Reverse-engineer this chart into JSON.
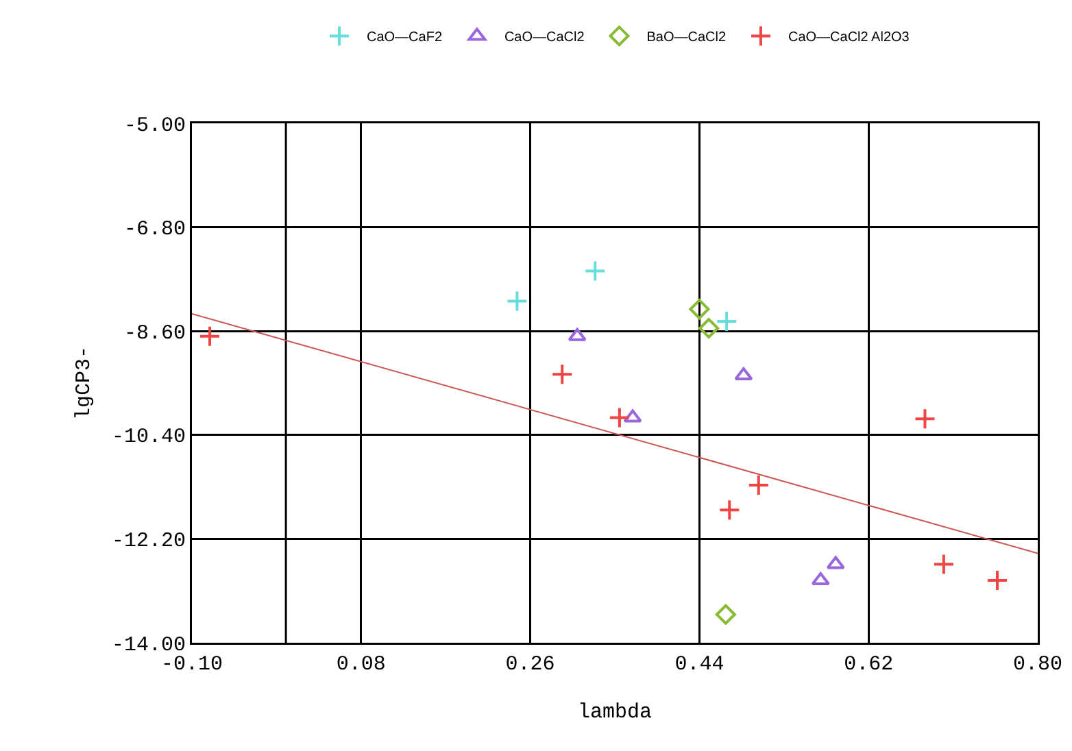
{
  "chart_data": {
    "type": "scatter",
    "xlabel": "lambda",
    "ylabel": "lgCP3-",
    "xlim": [
      -0.1,
      0.8
    ],
    "xticks": [
      {
        "value": -0.1,
        "label": "-0.10"
      },
      {
        "value": 0.08,
        "label": "0.08"
      },
      {
        "value": 0.26,
        "label": "0.26"
      },
      {
        "value": 0.44,
        "label": "0.44"
      },
      {
        "value": 0.62,
        "label": "0.62"
      },
      {
        "value": 0.8,
        "label": "0.80"
      }
    ],
    "ylim": [
      -14.0,
      -5.0
    ],
    "yticks": [
      {
        "value": -14.0,
        "label": "-14.00"
      },
      {
        "value": -12.2,
        "label": "-12.20"
      },
      {
        "value": -10.4,
        "label": "-10.40"
      },
      {
        "value": -8.6,
        "label": "-8.60"
      },
      {
        "value": -6.8,
        "label": "-6.80"
      },
      {
        "value": -5.0,
        "label": "-5.00"
      }
    ],
    "grid": true,
    "legend": "top",
    "ref_lines": [
      {
        "axis": "x",
        "value": 0,
        "label": null,
        "color": "#000000"
      }
    ],
    "series": [
      {
        "name": "CaO—CaF2",
        "color": "#66dddd",
        "marker": "cross",
        "x": [
          0.246,
          0.329,
          0.469
        ],
        "values": [
          -8.08,
          -7.56,
          -8.43
        ]
      },
      {
        "name": "CaO—CaCl2",
        "color": "#9966dd",
        "marker": "triangle",
        "x": [
          0.31,
          0.487,
          0.369,
          0.585,
          0.569
        ],
        "values": [
          -8.69,
          -9.37,
          -10.1,
          -12.64,
          -12.92
        ]
      },
      {
        "name": "BaO—CaCl2",
        "color": "#88bb33",
        "marker": "diamond",
        "x": [
          0.44,
          0.45,
          0.468
        ],
        "values": [
          -8.22,
          -8.55,
          -13.51
        ]
      },
      {
        "name": "CaO—CaCl2 Al2O3",
        "color": "#ee4444",
        "marker": "cross",
        "x": [
          -0.081,
          0.294,
          0.355,
          0.503,
          0.472,
          0.68,
          0.7,
          0.757
        ],
        "values": [
          -8.69,
          -9.35,
          -10.1,
          -11.27,
          -11.7,
          -10.12,
          -12.64,
          -12.92
        ]
      },
      {
        "type": "line",
        "color": "#cc5555",
        "marker": "none",
        "x": [
          -0.1,
          0.8
        ],
        "values": [
          -8.3,
          -12.45
        ]
      }
    ]
  }
}
